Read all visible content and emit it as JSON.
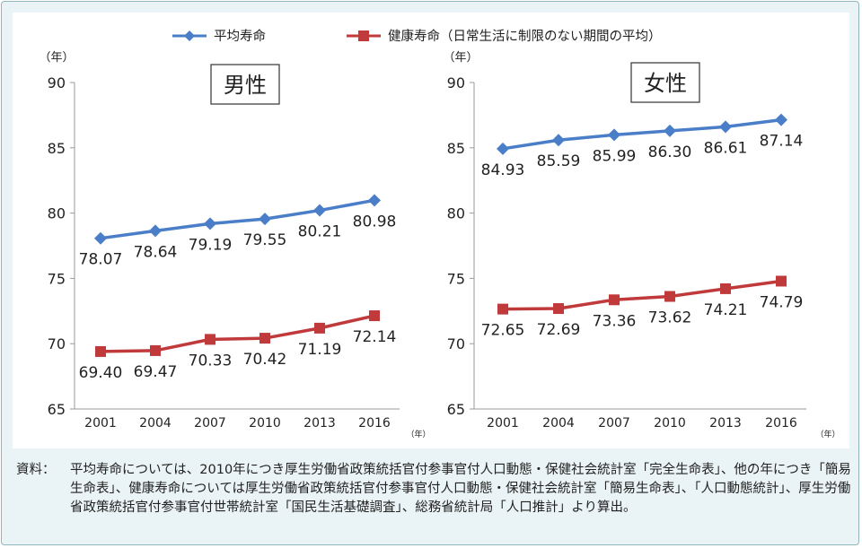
{
  "legend": {
    "series": [
      {
        "name": "平均寿命",
        "color": "#4a7ec8"
      },
      {
        "name": "健康寿命（日常生活に制限のない期間の平均）",
        "color": "#c0393b"
      }
    ]
  },
  "chart_data": [
    {
      "type": "line",
      "title": "男性",
      "ylabel": "（年）",
      "xlabel": "（年）",
      "x": [
        "2001",
        "2004",
        "2007",
        "2010",
        "2013",
        "2016"
      ],
      "ylim": [
        65,
        90
      ],
      "yticks": [
        "65",
        "70",
        "75",
        "80",
        "85",
        "90"
      ],
      "grid": false,
      "series": [
        {
          "name": "平均寿命",
          "values": [
            78.07,
            78.64,
            79.19,
            79.55,
            80.21,
            80.98
          ],
          "labels": [
            "78.07",
            "78.64",
            "79.19",
            "79.55",
            "80.21",
            "80.98"
          ]
        },
        {
          "name": "健康寿命（日常生活に制限のない期間の平均）",
          "values": [
            69.4,
            69.47,
            70.33,
            70.42,
            71.19,
            72.14
          ],
          "labels": [
            "69.40",
            "69.47",
            "70.33",
            "70.42",
            "71.19",
            "72.14"
          ]
        }
      ]
    },
    {
      "type": "line",
      "title": "女性",
      "ylabel": "（年）",
      "xlabel": "（年）",
      "x": [
        "2001",
        "2004",
        "2007",
        "2010",
        "2013",
        "2016"
      ],
      "ylim": [
        65,
        90
      ],
      "yticks": [
        "65",
        "70",
        "75",
        "80",
        "85",
        "90"
      ],
      "grid": false,
      "series": [
        {
          "name": "平均寿命",
          "values": [
            84.93,
            85.59,
            85.99,
            86.3,
            86.61,
            87.14
          ],
          "labels": [
            "84.93",
            "85.59",
            "85.99",
            "86.30",
            "86.61",
            "87.14"
          ]
        },
        {
          "name": "健康寿命（日常生活に制限のない期間の平均）",
          "values": [
            72.65,
            72.69,
            73.36,
            73.62,
            74.21,
            74.79
          ],
          "labels": [
            "72.65",
            "72.69",
            "73.36",
            "73.62",
            "74.21",
            "74.79"
          ]
        }
      ]
    }
  ],
  "source": {
    "label": "資料：",
    "text": "平均寿命については、2010年につき厚生労働省政策統括官付参事官付人口動態・保健社会統計室「完全生命表」、他の年につき「簡易生命表」、健康寿命については厚生労働省政策統括官付参事官付人口動態・保健社会統計室「簡易生命表」、「人口動態統計」、厚生労働省政策統括官付参事官付世帯統計室「国民生活基礎調査」、総務省統計局「人口推計」より算出。"
  }
}
